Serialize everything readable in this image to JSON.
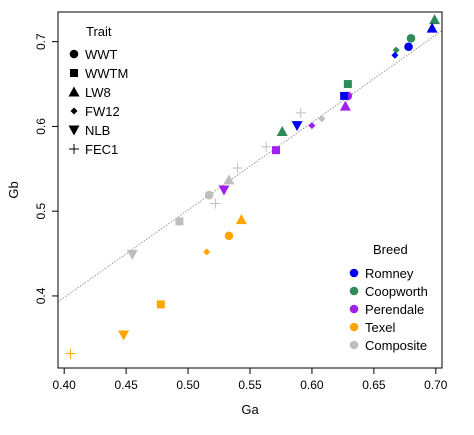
{
  "chart_data": {
    "type": "scatter",
    "title": "",
    "xlabel": "Ga",
    "ylabel": "Gb",
    "xlim": [
      0.395,
      0.705
    ],
    "ylim": [
      0.315,
      0.735
    ],
    "xticks": [
      0.4,
      0.45,
      0.5,
      0.55,
      0.6,
      0.65,
      0.7
    ],
    "xtick_labels": [
      "0.40",
      "0.45",
      "0.50",
      "0.55",
      "0.60",
      "0.65",
      "0.70"
    ],
    "yticks": [
      0.4,
      0.5,
      0.6,
      0.7
    ],
    "ytick_labels": [
      "0.4",
      "0.5",
      "0.6",
      "0.7"
    ],
    "grid": false,
    "reference_line": {
      "x1": 0.395,
      "y1": 0.393,
      "x2": 0.705,
      "y2": 0.713,
      "style": "dotted",
      "color": "#999999"
    },
    "shape_legend": {
      "title": "Trait",
      "placement": "top-left",
      "entries": [
        {
          "label": "WWT",
          "marker": "circle"
        },
        {
          "label": "WWTM",
          "marker": "square"
        },
        {
          "label": "LW8",
          "marker": "triangle-up"
        },
        {
          "label": "FW12",
          "marker": "diamond"
        },
        {
          "label": "NLB",
          "marker": "triangle-down"
        },
        {
          "label": "FEC1",
          "marker": "plus"
        }
      ]
    },
    "color_legend": {
      "title": "Breed",
      "placement": "bottom-right",
      "entries": [
        {
          "label": "Romney",
          "color": "#0000ee"
        },
        {
          "label": "Coopworth",
          "color": "#2e8b57"
        },
        {
          "label": "Perendale",
          "color": "#a020f0"
        },
        {
          "label": "Texel",
          "color": "#ffa500"
        },
        {
          "label": "Composite",
          "color": "#bebebe"
        }
      ]
    },
    "points": [
      {
        "breed": "Texel",
        "trait": "FEC1",
        "x": 0.405,
        "y": 0.332
      },
      {
        "breed": "Texel",
        "trait": "NLB",
        "x": 0.448,
        "y": 0.354
      },
      {
        "breed": "Texel",
        "trait": "WWTM",
        "x": 0.478,
        "y": 0.39
      },
      {
        "breed": "Texel",
        "trait": "FW12",
        "x": 0.515,
        "y": 0.452
      },
      {
        "breed": "Texel",
        "trait": "WWT",
        "x": 0.533,
        "y": 0.471
      },
      {
        "breed": "Texel",
        "trait": "LW8",
        "x": 0.543,
        "y": 0.49
      },
      {
        "breed": "Composite",
        "trait": "NLB",
        "x": 0.455,
        "y": 0.449
      },
      {
        "breed": "Composite",
        "trait": "WWTM",
        "x": 0.493,
        "y": 0.488
      },
      {
        "breed": "Composite",
        "trait": "WWT",
        "x": 0.517,
        "y": 0.519
      },
      {
        "breed": "Composite",
        "trait": "FEC1",
        "x": 0.522,
        "y": 0.509
      },
      {
        "breed": "Composite",
        "trait": "LW8",
        "x": 0.533,
        "y": 0.537
      },
      {
        "breed": "Composite",
        "trait": "FEC1",
        "x": 0.54,
        "y": 0.551
      },
      {
        "breed": "Composite",
        "trait": "FEC1",
        "x": 0.563,
        "y": 0.576
      },
      {
        "breed": "Composite",
        "trait": "FEC1",
        "x": 0.591,
        "y": 0.616
      },
      {
        "breed": "Composite",
        "trait": "FW12",
        "x": 0.608,
        "y": 0.609
      },
      {
        "breed": "Perendale",
        "trait": "NLB",
        "x": 0.529,
        "y": 0.525
      },
      {
        "breed": "Perendale",
        "trait": "WWTM",
        "x": 0.571,
        "y": 0.572
      },
      {
        "breed": "Perendale",
        "trait": "FW12",
        "x": 0.6,
        "y": 0.601
      },
      {
        "breed": "Perendale",
        "trait": "LW8",
        "x": 0.627,
        "y": 0.624
      },
      {
        "breed": "Perendale",
        "trait": "WWT",
        "x": 0.629,
        "y": 0.636
      },
      {
        "breed": "Coopworth",
        "trait": "LW8",
        "x": 0.576,
        "y": 0.594
      },
      {
        "breed": "Coopworth",
        "trait": "WWTM",
        "x": 0.629,
        "y": 0.65
      },
      {
        "breed": "Coopworth",
        "trait": "FW12",
        "x": 0.668,
        "y": 0.69
      },
      {
        "breed": "Coopworth",
        "trait": "WWT",
        "x": 0.68,
        "y": 0.704
      },
      {
        "breed": "Coopworth",
        "trait": "LW8",
        "x": 0.699,
        "y": 0.726
      },
      {
        "breed": "Romney",
        "trait": "NLB",
        "x": 0.588,
        "y": 0.601
      },
      {
        "breed": "Romney",
        "trait": "WWTM",
        "x": 0.626,
        "y": 0.636
      },
      {
        "breed": "Romney",
        "trait": "FW12",
        "x": 0.667,
        "y": 0.684
      },
      {
        "breed": "Romney",
        "trait": "WWT",
        "x": 0.678,
        "y": 0.694
      },
      {
        "breed": "Romney",
        "trait": "LW8",
        "x": 0.697,
        "y": 0.716
      }
    ]
  }
}
